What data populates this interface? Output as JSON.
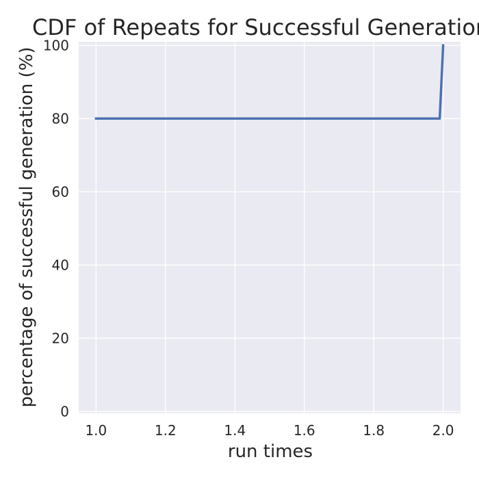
{
  "chart_data": {
    "type": "line",
    "title": "CDF of Repeats for Successful Generations",
    "xlabel": "run times",
    "ylabel": "percentage of successful generation (%)",
    "x_ticks": [
      "1.0",
      "1.2",
      "1.4",
      "1.6",
      "1.8",
      "2.0"
    ],
    "y_ticks": [
      "0",
      "20",
      "40",
      "60",
      "80",
      "100"
    ],
    "xlim": [
      0.95,
      2.05
    ],
    "ylim": [
      -0.5,
      101
    ],
    "grid": true,
    "series": [
      {
        "x": [
          1.0,
          1.99,
          2.0
        ],
        "y": [
          80,
          80,
          100
        ]
      }
    ],
    "colors": {
      "background": "#eaeaf2",
      "grid": "#ffffff",
      "line": "#4c72b0",
      "text": "#262626"
    }
  }
}
